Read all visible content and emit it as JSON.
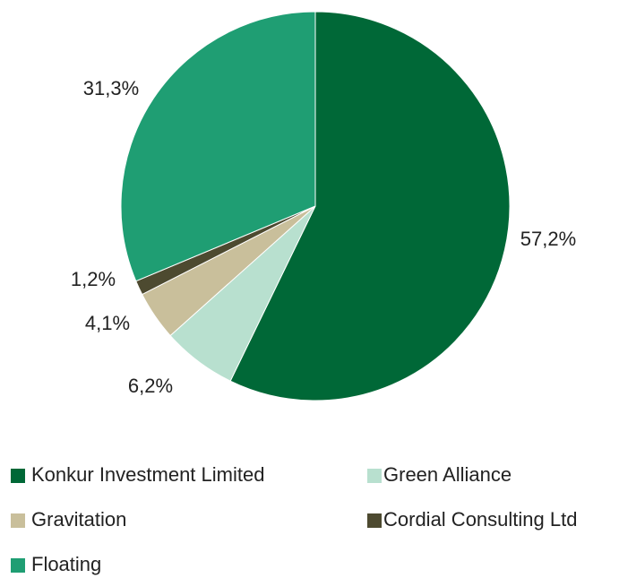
{
  "chart_data": {
    "type": "pie",
    "categories": [
      "Konkur Investment Limited",
      "Green Alliance",
      "Gravitation",
      "Cordial Consulting Ltd",
      "Floating"
    ],
    "values": [
      57.2,
      6.2,
      4.1,
      1.2,
      31.3
    ],
    "value_labels": [
      "57,2%",
      "6,2%",
      "4,1%",
      "1,2%",
      "31,3%"
    ],
    "colors": [
      "#006837",
      "#b8e0cf",
      "#c9bf9b",
      "#4d4a30",
      "#1f9e73"
    ]
  }
}
